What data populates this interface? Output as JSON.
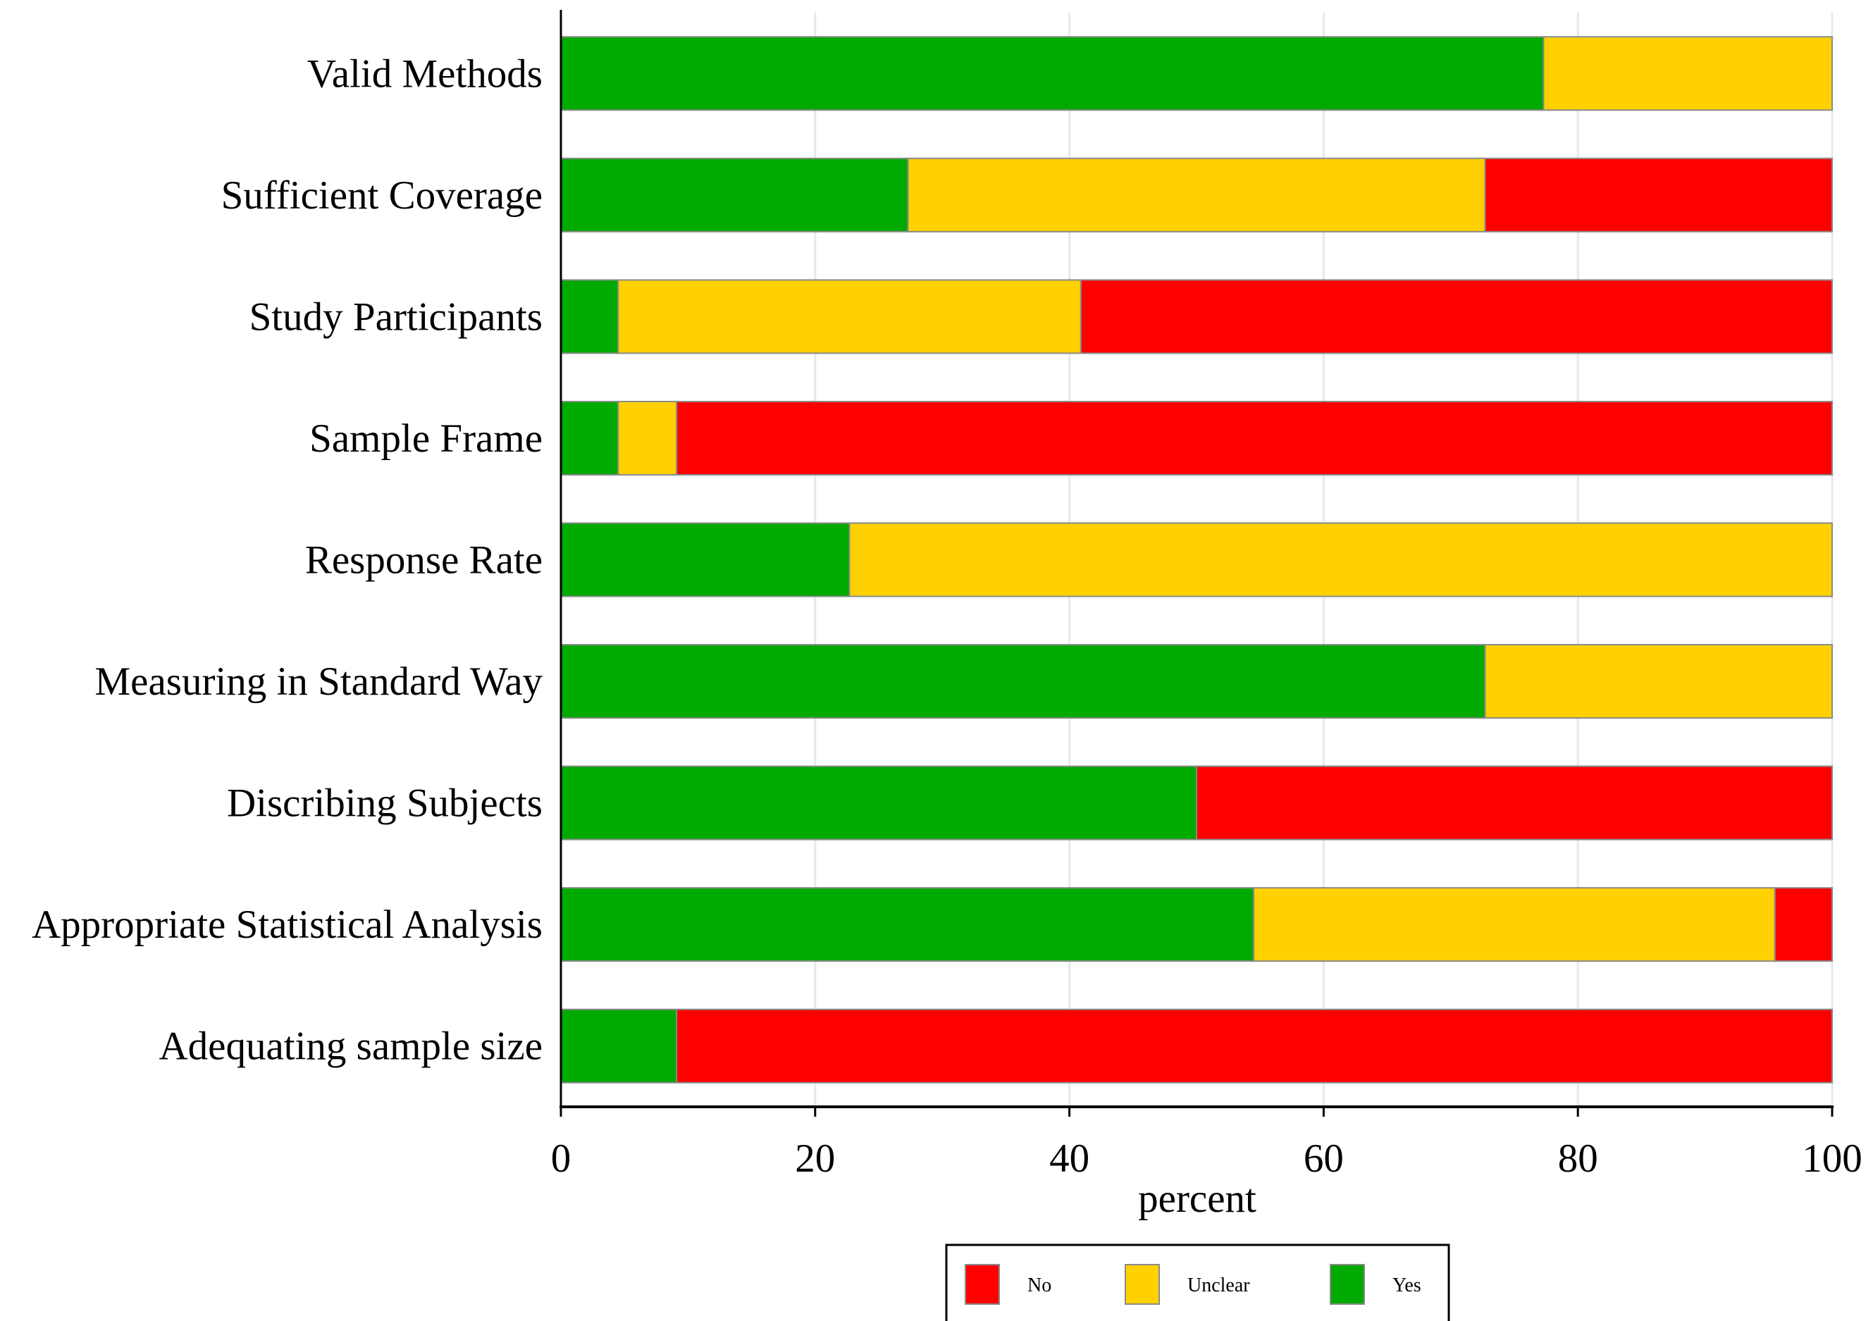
{
  "chart_data": {
    "type": "bar",
    "orientation": "horizontal",
    "stacked": true,
    "categories": [
      "Valid Methods",
      "Sufficient Coverage",
      "Study Participants",
      "Sample Frame",
      "Response Rate",
      "Measuring in Standard Way",
      "Discribing Subjects",
      "Appropriate Statistical Analysis",
      "Adequating sample size"
    ],
    "series": [
      {
        "name": "Yes",
        "color": "#00AA00",
        "values": [
          77.3,
          27.3,
          4.5,
          4.5,
          22.7,
          72.7,
          50.0,
          54.5,
          9.1
        ]
      },
      {
        "name": "Unclear",
        "color": "#FFD100",
        "values": [
          22.7,
          45.4,
          36.4,
          4.6,
          77.3,
          27.3,
          0.0,
          41.0,
          0.0
        ]
      },
      {
        "name": "No",
        "color": "#FF0000",
        "values": [
          0.0,
          27.3,
          59.1,
          90.9,
          0.0,
          0.0,
          50.0,
          4.5,
          90.9
        ]
      }
    ],
    "xlabel": "percent",
    "ylabel": "",
    "xlim": [
      0,
      100
    ],
    "xticks": [
      0,
      20,
      40,
      60,
      80,
      100
    ],
    "xtick_labels": [
      "0",
      "20",
      "40",
      "60",
      "80",
      "100"
    ],
    "grid": "vertical",
    "legend": {
      "position": "bottom",
      "order": [
        "No",
        "Unclear",
        "Yes"
      ]
    }
  }
}
